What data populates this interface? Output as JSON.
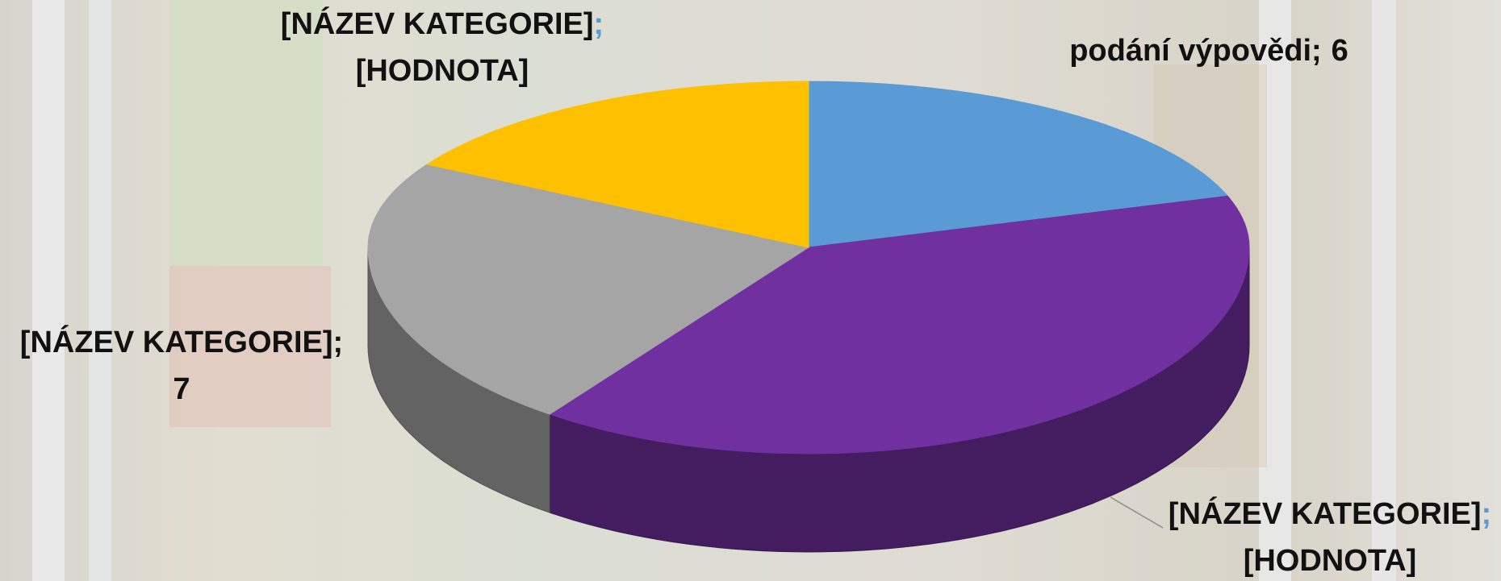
{
  "chart_data": {
    "type": "pie",
    "view": "3d",
    "categories": [
      "podání výpovědi",
      "[NÁZEV KATEGORIE]",
      "[NÁZEV KATEGORIE]",
      "[NÁZEV KATEGORIE]"
    ],
    "values": [
      6,
      12,
      7,
      5
    ],
    "value_labels": [
      "6",
      "[HODNOTA]",
      "7",
      "[HODNOTA]"
    ],
    "separator": ";",
    "colors": [
      "#5b9bd5",
      "#7030a0",
      "#a5a5a5",
      "#ffc000"
    ]
  }
}
